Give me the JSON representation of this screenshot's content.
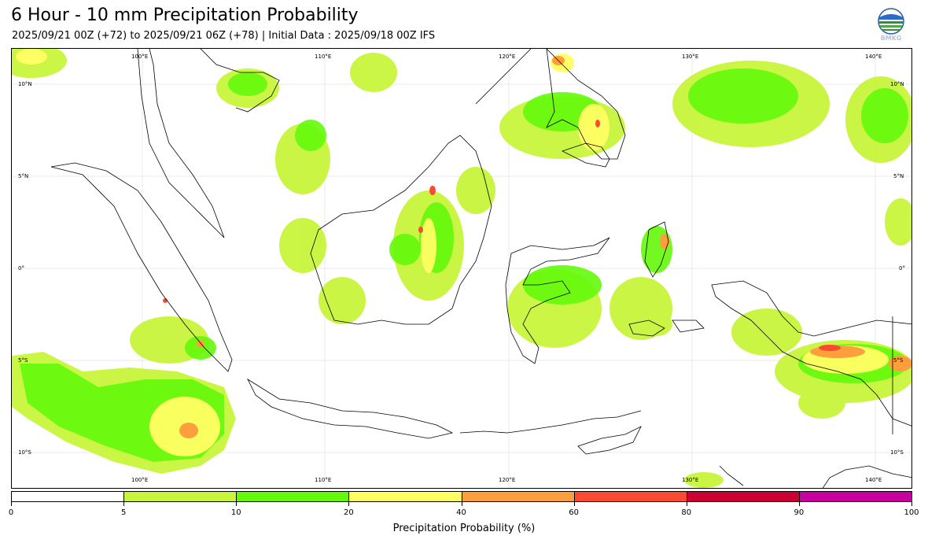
{
  "title": "6 Hour - 10 mm Precipitation Probability",
  "subtitle": "2025/09/21 00Z (+72) to 2025/09/21 06Z (+78) | Initial Data : 2025/09/18 00Z IFS",
  "logo_text": "BMKG",
  "map": {
    "lon_labels": [
      "100°E",
      "110°E",
      "120°E",
      "130°E",
      "140°E"
    ],
    "lat_labels": [
      "10°N",
      "5°N",
      "0°",
      "5°S",
      "10°S"
    ]
  },
  "colorbar": {
    "label": "Precipitation Probability (%)",
    "ticks": [
      "0",
      "5",
      "10",
      "20",
      "40",
      "60",
      "80",
      "90",
      "100"
    ],
    "colors": [
      "#ffffff",
      "#c8f53c",
      "#64f90a",
      "#ffff64",
      "#ff9e3c",
      "#fa4b32",
      "#cd0032",
      "#c8009f"
    ]
  }
}
